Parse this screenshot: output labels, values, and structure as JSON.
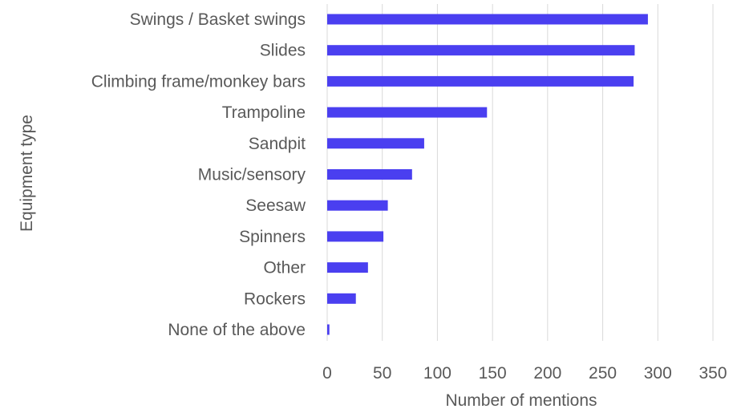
{
  "chart_data": {
    "type": "bar",
    "orientation": "horizontal",
    "categories": [
      "Swings / Basket swings",
      "Slides",
      "Climbing frame/monkey bars",
      "Trampoline",
      "Sandpit",
      "Music/sensory",
      "Seesaw",
      "Spinners",
      "Other ",
      "Rockers",
      "None of the above"
    ],
    "values": [
      291,
      279,
      278,
      145,
      88,
      77,
      55,
      51,
      37,
      26,
      2
    ],
    "xlabel": "Number of mentions",
    "ylabel": "Equipment type",
    "xlim": [
      0,
      350
    ],
    "xticks": [
      0,
      50,
      100,
      150,
      200,
      250,
      300,
      350
    ],
    "grid": "vertical",
    "legend": "none",
    "bar_color": "#4a3ff0"
  }
}
